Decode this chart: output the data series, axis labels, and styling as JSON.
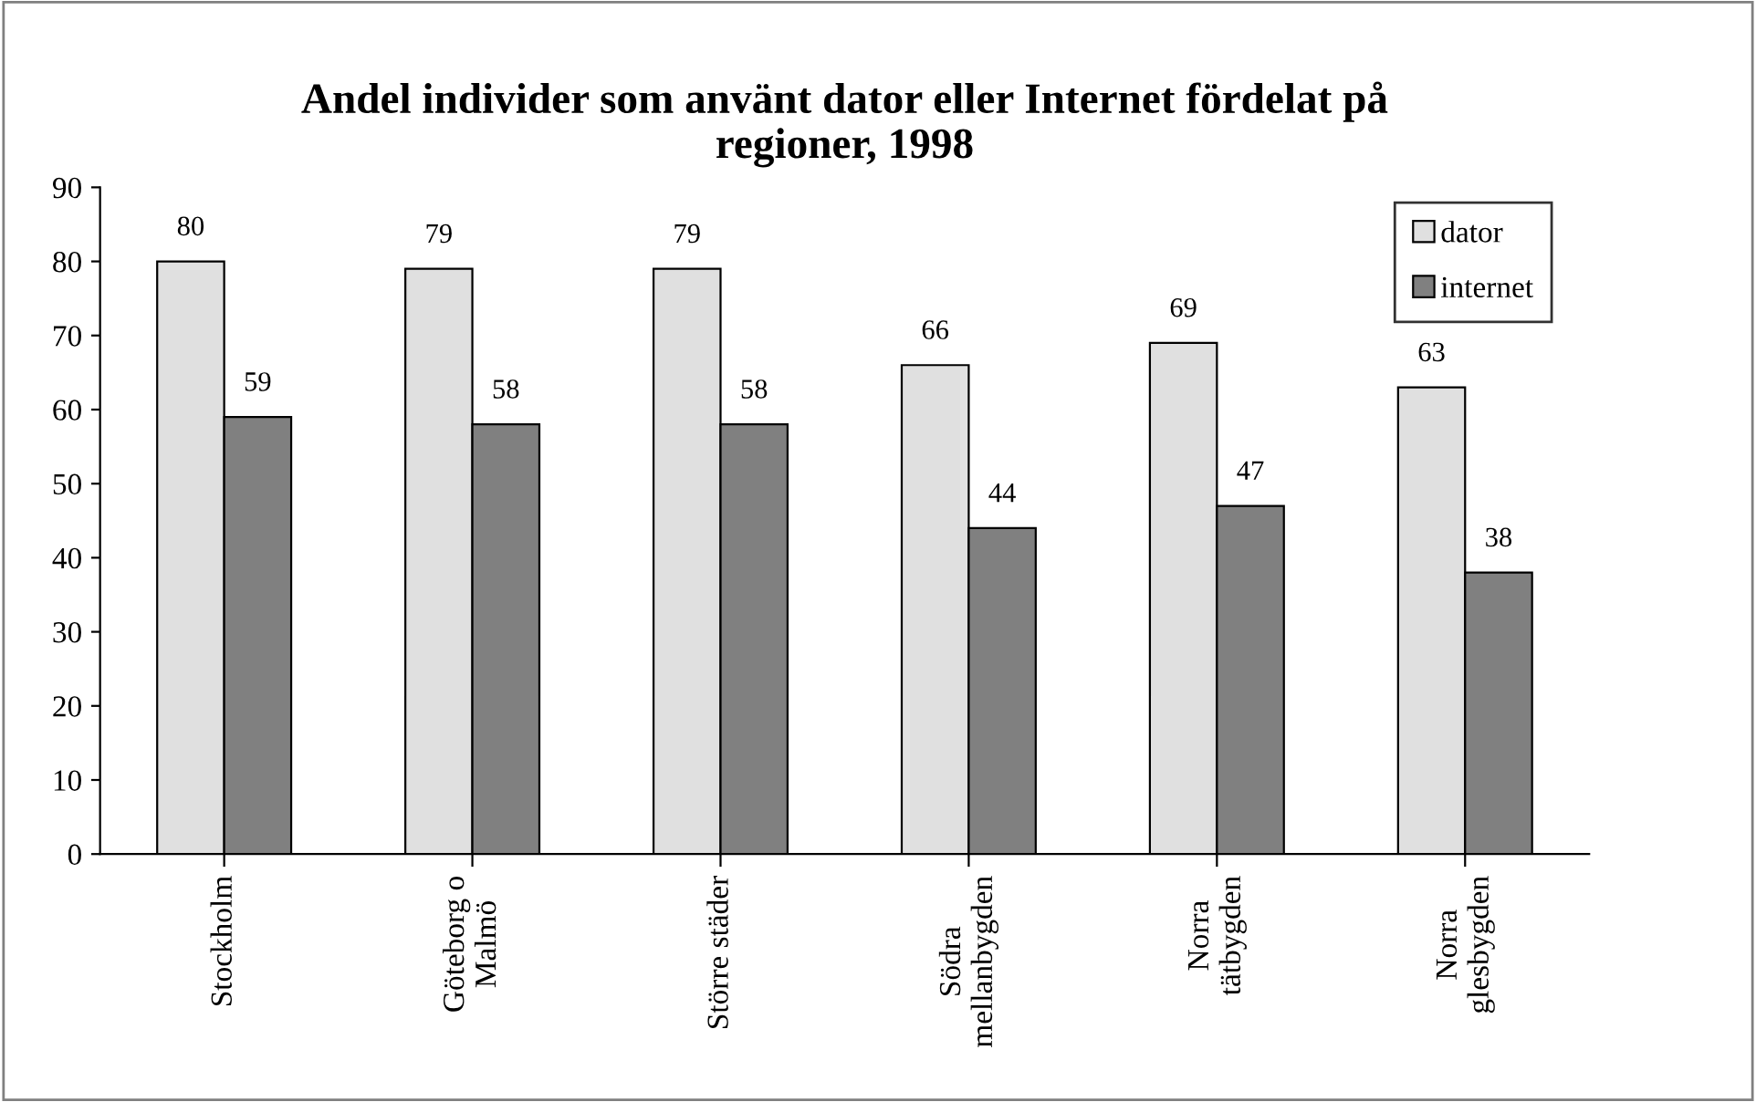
{
  "chart_data": {
    "type": "bar",
    "title": "Andel individer som använt dator eller Internet fördelat på\nregioner, 1998",
    "categories": [
      "Stockholm",
      "Göteborg o\nMalmö",
      "Större städer",
      "Södra\nmellanbygden",
      "Norra\ntätbygden",
      "Norra\nglesbygden"
    ],
    "series": [
      {
        "name": "dator",
        "color": "#e0e0e0",
        "values": [
          80,
          79,
          79,
          66,
          69,
          63
        ]
      },
      {
        "name": "internet",
        "color": "#808080",
        "values": [
          59,
          58,
          58,
          44,
          47,
          38
        ]
      }
    ],
    "ylim": [
      0,
      90
    ],
    "yticks": [
      0,
      10,
      20,
      30,
      40,
      50,
      60,
      70,
      80,
      90
    ],
    "data_labels": true,
    "legend": "top right",
    "grid": false
  }
}
